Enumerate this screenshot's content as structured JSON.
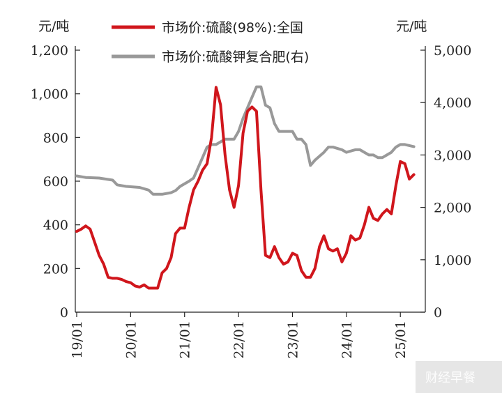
{
  "chart_data": {
    "type": "line",
    "y_left_unit": "元/吨",
    "y_right_unit": "元/吨",
    "y_left_ticks": [
      "1,200",
      "1,000",
      "800",
      "600",
      "400",
      "200",
      "0"
    ],
    "y_right_ticks": [
      "5,000",
      "4,000",
      "3,000",
      "2,000",
      "1,000",
      "0"
    ],
    "ylim_left": [
      0,
      1200
    ],
    "ylim_right": [
      0,
      5000
    ],
    "x_ticks": [
      "19/01",
      "20/01",
      "21/01",
      "22/01",
      "23/01",
      "24/01",
      "25/01"
    ],
    "legend_position": "top",
    "series": [
      {
        "name": "市场价:硫酸(98%):全国",
        "axis": "left",
        "color": "#d0161c",
        "points": [
          [
            "2019-01",
            370
          ],
          [
            "2019-02",
            380
          ],
          [
            "2019-03",
            395
          ],
          [
            "2019-04",
            380
          ],
          [
            "2019-05",
            320
          ],
          [
            "2019-06",
            260
          ],
          [
            "2019-07",
            220
          ],
          [
            "2019-08",
            160
          ],
          [
            "2019-09",
            155
          ],
          [
            "2019-10",
            155
          ],
          [
            "2019-11",
            150
          ],
          [
            "2019-12",
            140
          ],
          [
            "2020-01",
            135
          ],
          [
            "2020-02",
            120
          ],
          [
            "2020-03",
            115
          ],
          [
            "2020-04",
            125
          ],
          [
            "2020-05",
            110
          ],
          [
            "2020-06",
            110
          ],
          [
            "2020-07",
            110
          ],
          [
            "2020-08",
            180
          ],
          [
            "2020-09",
            200
          ],
          [
            "2020-10",
            250
          ],
          [
            "2020-11",
            360
          ],
          [
            "2020-12",
            385
          ],
          [
            "2021-01",
            385
          ],
          [
            "2021-02",
            480
          ],
          [
            "2021-03",
            560
          ],
          [
            "2021-04",
            600
          ],
          [
            "2021-05",
            650
          ],
          [
            "2021-06",
            680
          ],
          [
            "2021-07",
            800
          ],
          [
            "2021-08",
            1030
          ],
          [
            "2021-09",
            950
          ],
          [
            "2021-10",
            720
          ],
          [
            "2021-11",
            560
          ],
          [
            "2021-12",
            480
          ],
          [
            "2022-01",
            580
          ],
          [
            "2022-02",
            820
          ],
          [
            "2022-03",
            920
          ],
          [
            "2022-04",
            940
          ],
          [
            "2022-05",
            920
          ],
          [
            "2022-06",
            560
          ],
          [
            "2022-07",
            260
          ],
          [
            "2022-08",
            250
          ],
          [
            "2022-09",
            300
          ],
          [
            "2022-10",
            250
          ],
          [
            "2022-11",
            220
          ],
          [
            "2022-12",
            230
          ],
          [
            "2023-01",
            270
          ],
          [
            "2023-02",
            260
          ],
          [
            "2023-03",
            190
          ],
          [
            "2023-04",
            160
          ],
          [
            "2023-05",
            160
          ],
          [
            "2023-06",
            200
          ],
          [
            "2023-07",
            300
          ],
          [
            "2023-08",
            350
          ],
          [
            "2023-09",
            290
          ],
          [
            "2023-10",
            280
          ],
          [
            "2023-11",
            290
          ],
          [
            "2023-12",
            230
          ],
          [
            "2024-01",
            270
          ],
          [
            "2024-02",
            350
          ],
          [
            "2024-03",
            330
          ],
          [
            "2024-04",
            340
          ],
          [
            "2024-05",
            400
          ],
          [
            "2024-06",
            480
          ],
          [
            "2024-07",
            430
          ],
          [
            "2024-08",
            420
          ],
          [
            "2024-09",
            450
          ],
          [
            "2024-10",
            470
          ],
          [
            "2024-11",
            450
          ],
          [
            "2024-12",
            580
          ],
          [
            "2025-01",
            690
          ],
          [
            "2025-02",
            680
          ],
          [
            "2025-03",
            610
          ],
          [
            "2025-04",
            630
          ]
        ]
      },
      {
        "name": "市场价:硫酸钾复合肥(右)",
        "axis": "right",
        "color": "#999999",
        "points": [
          [
            "2019-01",
            2600
          ],
          [
            "2019-03",
            2570
          ],
          [
            "2019-06",
            2560
          ],
          [
            "2019-09",
            2520
          ],
          [
            "2019-10",
            2430
          ],
          [
            "2019-12",
            2400
          ],
          [
            "2020-03",
            2380
          ],
          [
            "2020-05",
            2330
          ],
          [
            "2020-06",
            2250
          ],
          [
            "2020-08",
            2250
          ],
          [
            "2020-10",
            2280
          ],
          [
            "2020-11",
            2320
          ],
          [
            "2020-12",
            2400
          ],
          [
            "2021-02",
            2500
          ],
          [
            "2021-03",
            2560
          ],
          [
            "2021-05",
            2950
          ],
          [
            "2021-06",
            3150
          ],
          [
            "2021-07",
            3200
          ],
          [
            "2021-08",
            3200
          ],
          [
            "2021-09",
            3250
          ],
          [
            "2021-10",
            3300
          ],
          [
            "2021-12",
            3300
          ],
          [
            "2022-01",
            3450
          ],
          [
            "2022-02",
            3700
          ],
          [
            "2022-03",
            3900
          ],
          [
            "2022-04",
            4100
          ],
          [
            "2022-05",
            4300
          ],
          [
            "2022-06",
            4300
          ],
          [
            "2022-07",
            3950
          ],
          [
            "2022-08",
            3900
          ],
          [
            "2022-09",
            3600
          ],
          [
            "2022-10",
            3450
          ],
          [
            "2022-11",
            3450
          ],
          [
            "2023-01",
            3450
          ],
          [
            "2023-02",
            3300
          ],
          [
            "2023-03",
            3300
          ],
          [
            "2023-04",
            3200
          ],
          [
            "2023-05",
            2800
          ],
          [
            "2023-06",
            2900
          ],
          [
            "2023-08",
            3050
          ],
          [
            "2023-09",
            3150
          ],
          [
            "2023-10",
            3150
          ],
          [
            "2023-12",
            3100
          ],
          [
            "2024-01",
            3050
          ],
          [
            "2024-03",
            3100
          ],
          [
            "2024-04",
            3100
          ],
          [
            "2024-05",
            3050
          ],
          [
            "2024-06",
            3000
          ],
          [
            "2024-07",
            3000
          ],
          [
            "2024-08",
            2950
          ],
          [
            "2024-09",
            2950
          ],
          [
            "2024-10",
            3000
          ],
          [
            "2024-11",
            3050
          ],
          [
            "2024-12",
            3150
          ],
          [
            "2025-01",
            3200
          ],
          [
            "2025-02",
            3200
          ],
          [
            "2025-03",
            3180
          ],
          [
            "2025-04",
            3160
          ]
        ]
      }
    ]
  },
  "watermark": "财经早餐"
}
